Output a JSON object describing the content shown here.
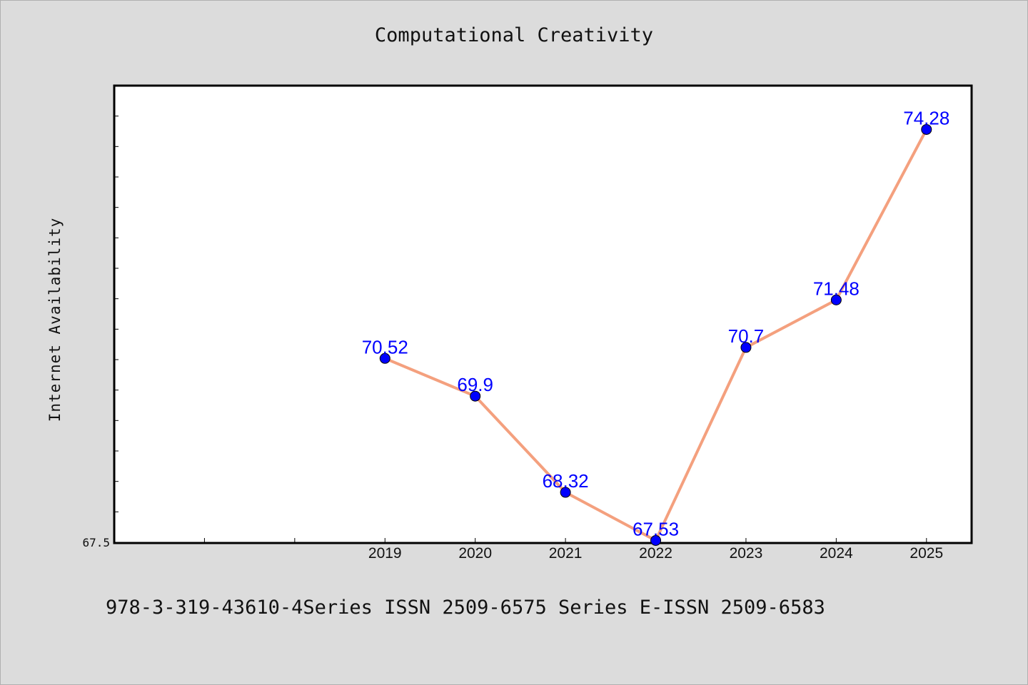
{
  "chart_data": {
    "type": "line",
    "title": "Computational Creativity",
    "ylabel": "Internet Availability",
    "xlabel": "",
    "categories": [
      "2019",
      "2020",
      "2021",
      "2022",
      "2023",
      "2024",
      "2025"
    ],
    "x_axis_range": [
      2016,
      2025.5
    ],
    "values": [
      70.52,
      69.9,
      68.32,
      67.53,
      70.7,
      71.48,
      74.28
    ],
    "value_labels": [
      "70.52",
      "69.9",
      "68.32",
      "67.53",
      "70.7",
      "71.48",
      "74.28"
    ],
    "ylim": [
      67.5,
      75.0
    ],
    "y_tick_labels": [
      "67.5"
    ],
    "grid": false,
    "line_color": "#f4a07e",
    "marker_color": "#0000ff",
    "label_color": "#0000ff"
  },
  "footer": "978-3-319-43610-4Series ISSN 2509-6575 Series E-ISSN 2509-6583"
}
